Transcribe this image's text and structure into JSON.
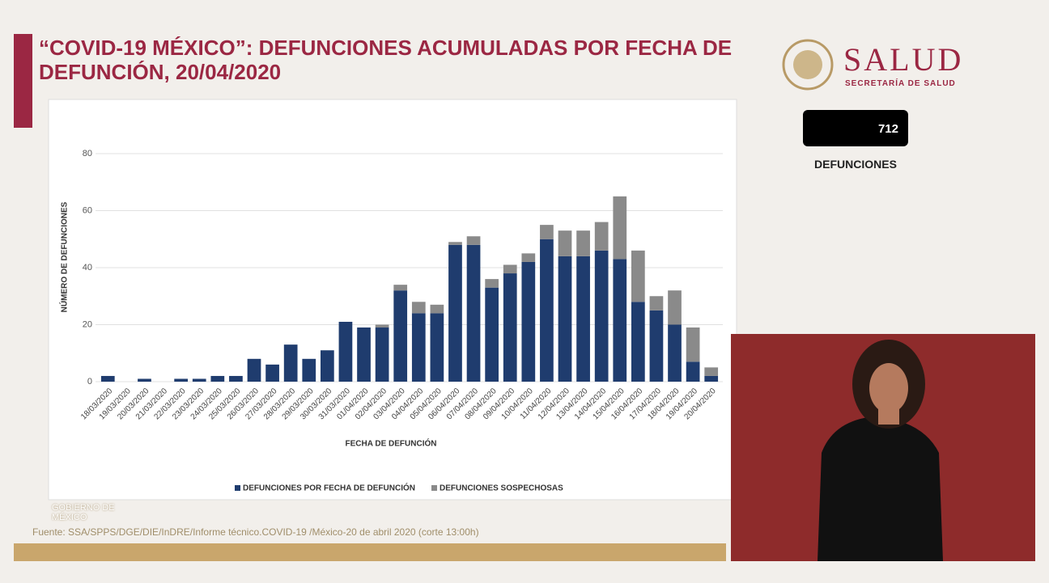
{
  "header": {
    "title": "“COVID-19 MÉXICO”: DEFUNCIONES ACUMULADAS POR FECHA DE DEFUNCIÓN, 20/04/2020"
  },
  "logo": {
    "name": "SALUD",
    "subtitle": "SECRETARÍA DE SALUD"
  },
  "counter": {
    "value": 712,
    "label": "DEFUNCIONES"
  },
  "footer": {
    "brand": "GOBIERNO DE MÉXICO",
    "source": "Fuente: SSA/SPPS/DGE/DIE/InDRE/Informe técnico.COVID-19 /México-20 de abril 2020 (corte 13:00h)"
  },
  "chart_data": {
    "type": "stacked-bar",
    "x_label": "FECHA DE DEFUNCIÓN",
    "y_label": "NÚMERO DE DEFUNCIONES",
    "categories": [
      "18/03/2020",
      "19/03/2020",
      "20/03/2020",
      "21/03/2020",
      "22/03/2020",
      "23/03/2020",
      "24/03/2020",
      "25/03/2020",
      "26/03/2020",
      "27/03/2020",
      "28/03/2020",
      "29/03/2020",
      "30/03/2020",
      "31/03/2020",
      "01/04/2020",
      "02/04/2020",
      "03/04/2020",
      "04/04/2020",
      "05/04/2020",
      "06/04/2020",
      "07/04/2020",
      "08/04/2020",
      "09/04/2020",
      "10/04/2020",
      "11/04/2020",
      "12/04/2020",
      "13/04/2020",
      "14/04/2020",
      "15/04/2020",
      "16/04/2020",
      "17/04/2020",
      "18/04/2020",
      "19/04/2020",
      "20/04/2020"
    ],
    "series": [
      {
        "name": "DEFUNCIONES POR FECHA DE DEFUNCIÓN",
        "color": "#1f3c6e",
        "values": [
          2,
          0,
          1,
          0,
          1,
          1,
          2,
          2,
          8,
          6,
          13,
          8,
          11,
          21,
          19,
          19,
          32,
          24,
          24,
          48,
          48,
          33,
          38,
          42,
          50,
          44,
          44,
          46,
          43,
          28,
          25,
          20,
          7,
          2
        ]
      },
      {
        "name": "DEFUNCIONES SOSPECHOSAS",
        "color": "#8a8a8a",
        "values": [
          0,
          0,
          0,
          0,
          0,
          0,
          0,
          0,
          0,
          0,
          0,
          0,
          0,
          0,
          0,
          1,
          2,
          4,
          3,
          1,
          3,
          3,
          3,
          3,
          5,
          9,
          9,
          10,
          22,
          18,
          5,
          12,
          12,
          3
        ]
      }
    ],
    "ylim": [
      0,
      80
    ],
    "yticks": [
      0,
      20,
      40,
      60,
      80
    ],
    "grid": true,
    "legend": "bottom"
  }
}
